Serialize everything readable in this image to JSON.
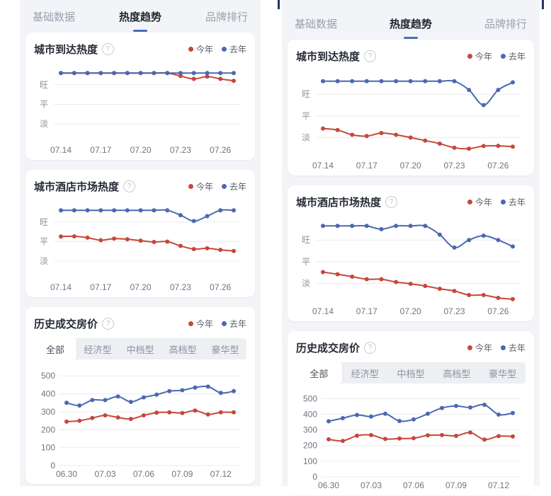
{
  "colors": {
    "this_year": "#c5483b",
    "last_year": "#4b68b1",
    "tab_underline": "#4a6dc0",
    "panel_background": "#f3f4f8",
    "highlight_corner": "#24365e"
  },
  "tabs": {
    "items": [
      {
        "label": "基础数据",
        "active": false
      },
      {
        "label": "热度趋势",
        "active": true
      },
      {
        "label": "品牌排行",
        "active": false
      }
    ]
  },
  "legend": {
    "this_year": "今年",
    "last_year": "去年"
  },
  "help_icon_glyph": "?",
  "price_filter": {
    "options": [
      "全部",
      "经济型",
      "中档型",
      "高档型",
      "豪华型"
    ],
    "active": "全部"
  },
  "chart_data": [
    {
      "id": "left-city-arrival-heat",
      "panel": "left",
      "type": "line",
      "title": "城市到达热度",
      "x": [
        "07.14",
        "07.15",
        "07.16",
        "07.17",
        "07.18",
        "07.19",
        "07.20",
        "07.21",
        "07.22",
        "07.23",
        "07.24",
        "07.25",
        "07.26",
        "07.27"
      ],
      "x_ticks": [
        "07.14",
        "07.17",
        "07.20",
        "07.23",
        "07.26"
      ],
      "y_axis": {
        "kind": "heat",
        "labels": [
          "淡",
          "平",
          "旺"
        ],
        "levels": [
          1,
          2,
          3
        ],
        "ylim": [
          0.1,
          4.15
        ]
      },
      "grid": true,
      "legend_position": "top-right",
      "series": [
        {
          "name": "今年",
          "color_key": "this_year",
          "values": [
            3.6,
            3.6,
            3.6,
            3.6,
            3.6,
            3.6,
            3.6,
            3.6,
            3.6,
            3.45,
            3.3,
            3.42,
            3.3,
            3.2
          ]
        },
        {
          "name": "去年",
          "color_key": "last_year",
          "values": [
            3.6,
            3.6,
            3.6,
            3.6,
            3.6,
            3.6,
            3.6,
            3.6,
            3.6,
            3.6,
            3.6,
            3.6,
            3.6,
            3.6
          ]
        }
      ]
    },
    {
      "id": "left-city-hotel-market-heat",
      "panel": "left",
      "type": "line",
      "title": "城市酒店市场热度",
      "x": [
        "07.14",
        "07.15",
        "07.16",
        "07.17",
        "07.18",
        "07.19",
        "07.20",
        "07.21",
        "07.22",
        "07.23",
        "07.24",
        "07.25",
        "07.26",
        "07.27"
      ],
      "x_ticks": [
        "07.14",
        "07.17",
        "07.20",
        "07.23",
        "07.26"
      ],
      "y_axis": {
        "kind": "heat",
        "labels": [
          "淡",
          "平",
          "旺"
        ],
        "levels": [
          1,
          2,
          3
        ],
        "ylim": [
          0.1,
          4.15
        ]
      },
      "grid": true,
      "legend_position": "top-right",
      "series": [
        {
          "name": "今年",
          "color_key": "this_year",
          "values": [
            2.26,
            2.27,
            2.2,
            2.07,
            2.15,
            2.12,
            2.05,
            1.98,
            2.0,
            1.78,
            1.62,
            1.66,
            1.58,
            1.52
          ]
        },
        {
          "name": "去年",
          "color_key": "last_year",
          "values": [
            3.6,
            3.6,
            3.6,
            3.6,
            3.6,
            3.6,
            3.6,
            3.6,
            3.6,
            3.35,
            3.05,
            3.3,
            3.6,
            3.6
          ]
        }
      ]
    },
    {
      "id": "left-historical-price",
      "panel": "left",
      "type": "line",
      "title": "历史成交房价",
      "x": [
        "06.30",
        "07.01",
        "07.02",
        "07.03",
        "07.04",
        "07.05",
        "07.06",
        "07.07",
        "07.08",
        "07.09",
        "07.10",
        "07.11",
        "07.12",
        "07.13"
      ],
      "x_ticks": [
        "06.30",
        "07.03",
        "07.06",
        "07.09",
        "07.12"
      ],
      "y_axis": {
        "kind": "numeric",
        "ticks": [
          0,
          100,
          200,
          300,
          400,
          500
        ],
        "ylim": [
          0,
          560
        ]
      },
      "grid": true,
      "legend_position": "top-right",
      "series": [
        {
          "name": "今年",
          "color_key": "this_year",
          "values": [
            245,
            250,
            265,
            280,
            268,
            260,
            280,
            295,
            297,
            293,
            307,
            285,
            297,
            297
          ]
        },
        {
          "name": "去年",
          "color_key": "last_year",
          "values": [
            350,
            335,
            365,
            365,
            385,
            355,
            380,
            395,
            415,
            420,
            435,
            440,
            405,
            415
          ]
        }
      ]
    },
    {
      "id": "right-city-arrival-heat",
      "panel": "right",
      "type": "line",
      "title": "城市到达热度",
      "x": [
        "07.14",
        "07.15",
        "07.16",
        "07.17",
        "07.18",
        "07.19",
        "07.20",
        "07.21",
        "07.22",
        "07.23",
        "07.24",
        "07.25",
        "07.26",
        "07.27"
      ],
      "x_ticks": [
        "07.14",
        "07.17",
        "07.20",
        "07.23",
        "07.26"
      ],
      "y_axis": {
        "kind": "heat",
        "labels": [
          "淡",
          "平",
          "旺"
        ],
        "levels": [
          1,
          2,
          3
        ],
        "ylim": [
          0.1,
          4.15
        ]
      },
      "grid": true,
      "legend_position": "top-right",
      "series": [
        {
          "name": "今年",
          "color_key": "this_year",
          "values": [
            1.42,
            1.35,
            1.13,
            1.07,
            1.21,
            1.13,
            1.0,
            0.86,
            0.72,
            0.53,
            0.49,
            0.61,
            0.62,
            0.58
          ]
        },
        {
          "name": "去年",
          "color_key": "last_year",
          "values": [
            3.6,
            3.6,
            3.6,
            3.6,
            3.6,
            3.6,
            3.6,
            3.6,
            3.6,
            3.6,
            3.2,
            2.5,
            3.2,
            3.55
          ]
        }
      ]
    },
    {
      "id": "right-city-hotel-market-heat",
      "panel": "right",
      "type": "line",
      "title": "城市酒店市场热度",
      "x": [
        "07.14",
        "07.15",
        "07.16",
        "07.17",
        "07.18",
        "07.19",
        "07.20",
        "07.21",
        "07.22",
        "07.23",
        "07.24",
        "07.25",
        "07.26",
        "07.27"
      ],
      "x_ticks": [
        "07.14",
        "07.17",
        "07.20",
        "07.23",
        "07.26"
      ],
      "y_axis": {
        "kind": "heat",
        "labels": [
          "淡",
          "平",
          "旺"
        ],
        "levels": [
          1,
          2,
          3
        ],
        "ylim": [
          0.1,
          4.15
        ]
      },
      "grid": true,
      "legend_position": "top-right",
      "series": [
        {
          "name": "今年",
          "color_key": "this_year",
          "values": [
            1.52,
            1.42,
            1.31,
            1.19,
            1.19,
            1.06,
            0.98,
            0.88,
            0.75,
            0.65,
            0.46,
            0.46,
            0.33,
            0.27
          ]
        },
        {
          "name": "去年",
          "color_key": "last_year",
          "values": [
            3.65,
            3.65,
            3.65,
            3.65,
            3.5,
            3.65,
            3.65,
            3.65,
            3.25,
            2.65,
            3.0,
            3.2,
            3.0,
            2.7
          ]
        }
      ]
    },
    {
      "id": "right-historical-price",
      "panel": "right",
      "type": "line",
      "title": "历史成交房价",
      "x": [
        "06.30",
        "07.01",
        "07.02",
        "07.03",
        "07.04",
        "07.05",
        "07.06",
        "07.07",
        "07.08",
        "07.09",
        "07.10",
        "07.11",
        "07.12",
        "07.13"
      ],
      "x_ticks": [
        "06.30",
        "07.03",
        "07.06",
        "07.09",
        "07.12"
      ],
      "y_axis": {
        "kind": "numeric",
        "ticks": [
          0,
          100,
          200,
          300,
          400,
          500
        ],
        "ylim": [
          0,
          560
        ]
      },
      "grid": true,
      "legend_position": "top-right",
      "series": [
        {
          "name": "今年",
          "color_key": "this_year",
          "values": [
            240,
            230,
            263,
            267,
            242,
            245,
            247,
            265,
            267,
            262,
            283,
            238,
            260,
            258
          ]
        },
        {
          "name": "去年",
          "color_key": "last_year",
          "values": [
            355,
            375,
            395,
            385,
            403,
            357,
            367,
            403,
            440,
            453,
            443,
            460,
            398,
            408
          ]
        }
      ]
    }
  ]
}
